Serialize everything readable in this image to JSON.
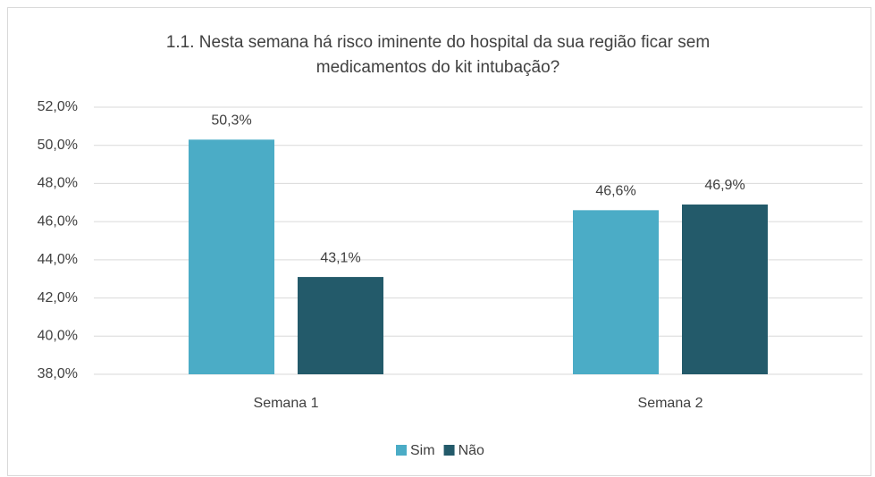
{
  "chart_data": {
    "type": "bar",
    "title": [
      "1.1. Nesta semana há risco iminente do hospital da sua região ficar sem",
      "medicamentos do kit intubação?"
    ],
    "categories": [
      "Semana 1",
      "Semana 2"
    ],
    "series": [
      {
        "name": "Sim",
        "color": "#4bacc6",
        "values": [
          50.3,
          46.6
        ],
        "value_labels": [
          "50,3%",
          "46,6%"
        ]
      },
      {
        "name": "Não",
        "color": "#235a6a",
        "values": [
          43.1,
          46.9
        ],
        "value_labels": [
          "43,1%",
          "46,9%"
        ]
      }
    ],
    "ylim": [
      38,
      52
    ],
    "yticks": [
      {
        "value": 38,
        "label": "38,0%"
      },
      {
        "value": 40,
        "label": "40,0%"
      },
      {
        "value": 42,
        "label": "42,0%"
      },
      {
        "value": 44,
        "label": "44,0%"
      },
      {
        "value": 46,
        "label": "46,0%"
      },
      {
        "value": 48,
        "label": "48,0%"
      },
      {
        "value": 50,
        "label": "50,0%"
      },
      {
        "value": 52,
        "label": "52,0%"
      }
    ],
    "grid": true,
    "legend": "bottom"
  }
}
